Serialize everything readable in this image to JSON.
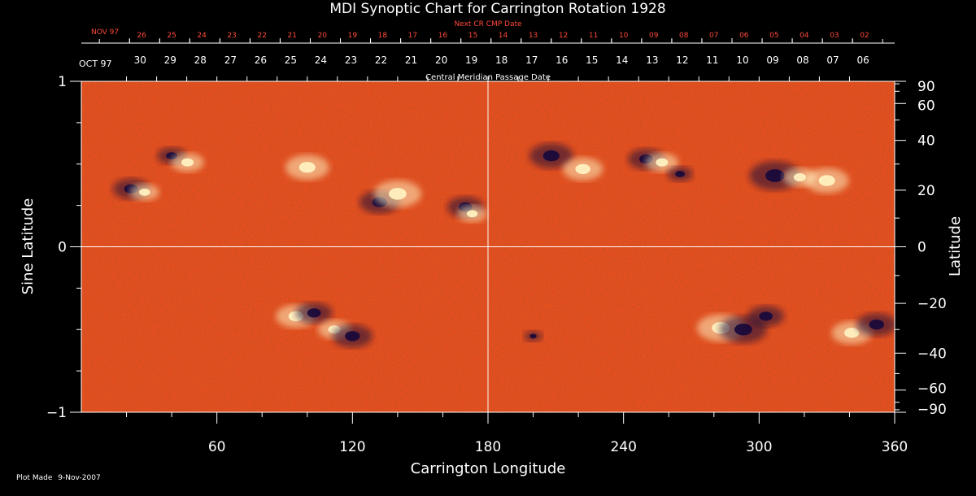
{
  "chart_data": {
    "type": "heatmap",
    "title": "MDI Synoptic Chart for Carrington Rotation 1928",
    "xlabel": "Carrington Longitude",
    "ylabel_left": "Sine Latitude",
    "ylabel_right": "Latitude",
    "xlim": [
      0,
      360
    ],
    "ylim": [
      -1,
      1
    ],
    "x_ticks": [
      60,
      120,
      180,
      240,
      300,
      360
    ],
    "y_ticks_left": [
      -1,
      0,
      1
    ],
    "y_ticks_right": [
      90,
      60,
      40,
      20,
      0,
      -20,
      -40,
      -60,
      -90
    ],
    "top_axis_label": "Central Meridian Passage Date",
    "top_axis_month_label": "OCT 97",
    "top_axis_dates": [
      "30",
      "29",
      "28",
      "27",
      "26",
      "25",
      "24",
      "23",
      "22",
      "21",
      "20",
      "19",
      "18",
      "17",
      "16",
      "15",
      "14",
      "13",
      "12",
      "11",
      "10",
      "09",
      "08",
      "07",
      "06"
    ],
    "next_cr_label": "Next CR CMP Date",
    "next_cr_month_label": "NOV 97",
    "next_cr_dates": [
      "26",
      "25",
      "24",
      "23",
      "22",
      "21",
      "20",
      "19",
      "18",
      "17",
      "16",
      "15",
      "14",
      "13",
      "12",
      "11",
      "10",
      "09",
      "08",
      "07",
      "06",
      "05",
      "04",
      "03",
      "02"
    ],
    "regions": [
      {
        "lon": 22,
        "sinlat": 0.35,
        "polarity": "negative",
        "size": 1.0
      },
      {
        "lon": 28,
        "sinlat": 0.33,
        "polarity": "positive",
        "size": 0.8
      },
      {
        "lon": 40,
        "sinlat": 0.55,
        "polarity": "negative",
        "size": 0.8
      },
      {
        "lon": 47,
        "sinlat": 0.51,
        "polarity": "positive",
        "size": 0.9
      },
      {
        "lon": 100,
        "sinlat": 0.48,
        "polarity": "positive",
        "size": 1.2
      },
      {
        "lon": 132,
        "sinlat": 0.27,
        "polarity": "negative",
        "size": 1.1
      },
      {
        "lon": 140,
        "sinlat": 0.32,
        "polarity": "positive",
        "size": 1.3
      },
      {
        "lon": 170,
        "sinlat": 0.24,
        "polarity": "negative",
        "size": 1.0
      },
      {
        "lon": 173,
        "sinlat": 0.2,
        "polarity": "positive",
        "size": 0.8
      },
      {
        "lon": 208,
        "sinlat": 0.55,
        "polarity": "negative",
        "size": 1.2
      },
      {
        "lon": 222,
        "sinlat": 0.47,
        "polarity": "positive",
        "size": 1.1
      },
      {
        "lon": 250,
        "sinlat": 0.53,
        "polarity": "negative",
        "size": 1.0
      },
      {
        "lon": 257,
        "sinlat": 0.51,
        "polarity": "positive",
        "size": 0.9
      },
      {
        "lon": 265,
        "sinlat": 0.44,
        "polarity": "negative",
        "size": 0.7
      },
      {
        "lon": 307,
        "sinlat": 0.43,
        "polarity": "negative",
        "size": 1.4
      },
      {
        "lon": 318,
        "sinlat": 0.42,
        "polarity": "positive",
        "size": 0.9
      },
      {
        "lon": 330,
        "sinlat": 0.4,
        "polarity": "positive",
        "size": 1.2
      },
      {
        "lon": 95,
        "sinlat": -0.42,
        "polarity": "positive",
        "size": 1.1
      },
      {
        "lon": 103,
        "sinlat": -0.4,
        "polarity": "negative",
        "size": 1.0
      },
      {
        "lon": 112,
        "sinlat": -0.5,
        "polarity": "positive",
        "size": 0.9
      },
      {
        "lon": 120,
        "sinlat": -0.54,
        "polarity": "negative",
        "size": 1.1
      },
      {
        "lon": 200,
        "sinlat": -0.54,
        "polarity": "negative",
        "size": 0.5
      },
      {
        "lon": 283,
        "sinlat": -0.49,
        "polarity": "positive",
        "size": 1.3
      },
      {
        "lon": 293,
        "sinlat": -0.5,
        "polarity": "negative",
        "size": 1.3
      },
      {
        "lon": 303,
        "sinlat": -0.42,
        "polarity": "negative",
        "size": 1.0
      },
      {
        "lon": 341,
        "sinlat": -0.52,
        "polarity": "positive",
        "size": 1.1
      },
      {
        "lon": 352,
        "sinlat": -0.47,
        "polarity": "negative",
        "size": 1.1
      }
    ],
    "colors": {
      "background": "#000000",
      "field_neutral": "#e8501e",
      "field_positive": "#fff0c0",
      "field_negative": "#1a0a3a",
      "text_primary": "#ffffff",
      "text_secondary": "#ff4a3a"
    }
  },
  "footer": {
    "plot_made_label": "Plot Made",
    "plot_made_date": "9-Nov-2007"
  }
}
